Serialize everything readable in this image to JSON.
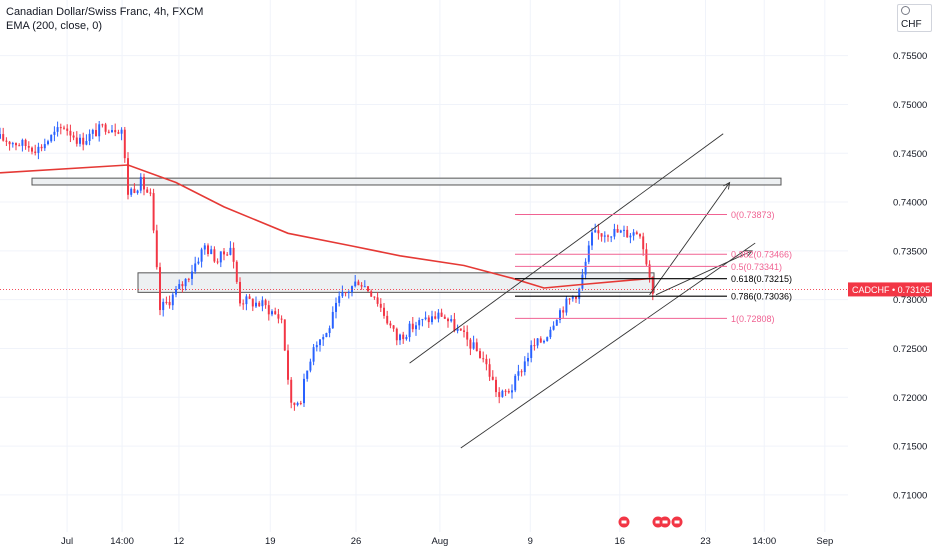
{
  "header": {
    "symbol_line": "Canadian Dollar/Swiss Franc, 4h, FXCM",
    "indicator_line": "EMA (200, close, 0)",
    "currency_label": "CHF"
  },
  "price_tag": {
    "symbol": "CADCHF",
    "value": "0.73105",
    "color": "#f23645"
  },
  "colors": {
    "up": "#2962ff",
    "down": "#f23645",
    "ema": "#e53935",
    "fib": "#f06292",
    "fib_key": "#000000",
    "zone_fill": "#e9ecef",
    "zone_border": "#555555",
    "trend": "#333333"
  },
  "chart_data": {
    "type": "candlestick",
    "ylim": [
      0.7062,
      0.7607
    ],
    "x_ticks": [
      "Jul",
      "14:00",
      "12",
      "19",
      "26",
      "Aug",
      "9",
      "16",
      "23",
      "14:00",
      "Sep"
    ],
    "y_ticks": [
      "0.75500",
      "0.75000",
      "0.74500",
      "0.74000",
      "0.73500",
      "0.73000",
      "0.72500",
      "0.72000",
      "0.71500",
      "0.71000"
    ],
    "anchor_points": [
      {
        "t": 0,
        "price": 0.7465
      },
      {
        "t": 12,
        "price": 0.7455
      },
      {
        "t": 20,
        "price": 0.7478
      },
      {
        "t": 25,
        "price": 0.7462
      },
      {
        "t": 33,
        "price": 0.7478
      },
      {
        "t": 38,
        "price": 0.7475
      },
      {
        "t": 40,
        "price": 0.741
      },
      {
        "t": 44,
        "price": 0.742
      },
      {
        "t": 47,
        "price": 0.7405
      },
      {
        "t": 50,
        "price": 0.729
      },
      {
        "t": 53,
        "price": 0.73
      },
      {
        "t": 58,
        "price": 0.732
      },
      {
        "t": 64,
        "price": 0.7355
      },
      {
        "t": 68,
        "price": 0.734
      },
      {
        "t": 72,
        "price": 0.7355
      },
      {
        "t": 75,
        "price": 0.73
      },
      {
        "t": 82,
        "price": 0.7295
      },
      {
        "t": 88,
        "price": 0.728
      },
      {
        "t": 91,
        "price": 0.719
      },
      {
        "t": 94,
        "price": 0.72
      },
      {
        "t": 98,
        "price": 0.7255
      },
      {
        "t": 102,
        "price": 0.7265
      },
      {
        "t": 106,
        "price": 0.73
      },
      {
        "t": 112,
        "price": 0.732
      },
      {
        "t": 117,
        "price": 0.7305
      },
      {
        "t": 124,
        "price": 0.726
      },
      {
        "t": 130,
        "price": 0.7275
      },
      {
        "t": 138,
        "price": 0.7285
      },
      {
        "t": 144,
        "price": 0.7265
      },
      {
        "t": 151,
        "price": 0.724
      },
      {
        "t": 156,
        "price": 0.72
      },
      {
        "t": 160,
        "price": 0.721
      },
      {
        "t": 166,
        "price": 0.725
      },
      {
        "t": 170,
        "price": 0.726
      },
      {
        "t": 174,
        "price": 0.7285
      },
      {
        "t": 178,
        "price": 0.73
      },
      {
        "t": 181,
        "price": 0.731
      },
      {
        "t": 185,
        "price": 0.7365
      },
      {
        "t": 190,
        "price": 0.737
      },
      {
        "t": 196,
        "price": 0.7368
      },
      {
        "t": 200,
        "price": 0.737
      },
      {
        "t": 202,
        "price": 0.734
      },
      {
        "t": 204,
        "price": 0.731
      }
    ],
    "ema": [
      {
        "t": 0,
        "price": 0.743
      },
      {
        "t": 40,
        "price": 0.7438
      },
      {
        "t": 55,
        "price": 0.742
      },
      {
        "t": 70,
        "price": 0.7395
      },
      {
        "t": 90,
        "price": 0.7368
      },
      {
        "t": 110,
        "price": 0.7355
      },
      {
        "t": 125,
        "price": 0.7345
      },
      {
        "t": 145,
        "price": 0.7335
      },
      {
        "t": 160,
        "price": 0.7322
      },
      {
        "t": 170,
        "price": 0.7312
      },
      {
        "t": 180,
        "price": 0.7315
      },
      {
        "t": 204,
        "price": 0.7322
      }
    ],
    "zones": [
      {
        "x_from": "Jul",
        "x_to": "Sep",
        "top": 0.74245,
        "bottom": 0.74175
      },
      {
        "x_from": "12",
        "x_to": "16",
        "top": 0.73275,
        "bottom": 0.73075
      }
    ],
    "trend_lines": [
      {
        "from": [
          128,
          0.7235
        ],
        "to": [
          226,
          0.747
        ]
      },
      {
        "from": [
          144,
          0.7148
        ],
        "to": [
          236,
          0.7358
        ]
      }
    ],
    "arrows": [
      {
        "from": [
          203,
          0.7305
        ],
        "to": [
          228,
          0.742
        ]
      },
      {
        "from": [
          205,
          0.7305
        ],
        "to": [
          235,
          0.735
        ]
      }
    ],
    "fib_levels": [
      {
        "label": "0(0.73873)",
        "price": 0.73873
      },
      {
        "label": "0.382(0.73466)",
        "price": 0.73466
      },
      {
        "label": "0.5(0.73341)",
        "price": 0.73341
      },
      {
        "label": "0.618(0.73215)",
        "price": 0.73215,
        "key": true
      },
      {
        "label": "0.786(0.73036)",
        "price": 0.73036,
        "key": true
      },
      {
        "label": "1(0.72808)",
        "price": 0.72808
      }
    ],
    "last_price": 0.73105
  }
}
